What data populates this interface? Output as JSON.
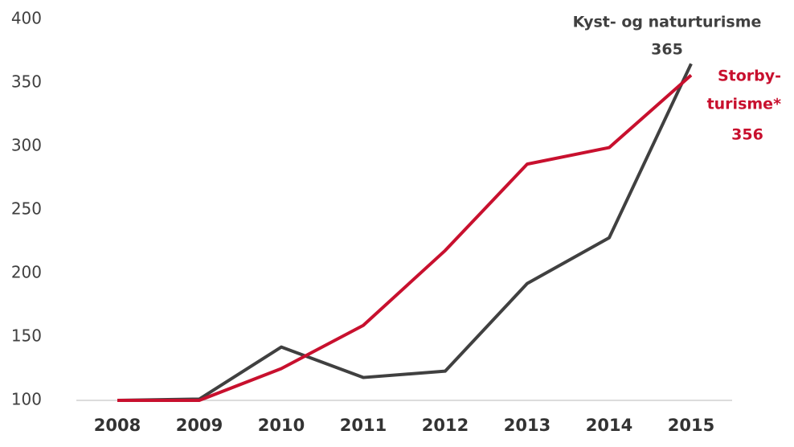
{
  "chart_data": {
    "type": "line",
    "categories": [
      "2008",
      "2009",
      "2010",
      "2011",
      "2012",
      "2013",
      "2014",
      "2015"
    ],
    "series": [
      {
        "name_lines": [
          "Kyst- og naturturisme"
        ],
        "color": "#404040",
        "values": [
          100,
          101,
          142,
          118,
          123,
          192,
          228,
          365
        ]
      },
      {
        "name_lines": [
          "Storby-",
          "turisme*"
        ],
        "color": "#c8102e",
        "values": [
          100,
          100,
          125,
          159,
          218,
          286,
          299,
          356
        ]
      }
    ],
    "ylim": [
      100,
      400
    ],
    "yticks": [
      100,
      150,
      200,
      250,
      300,
      350,
      400
    ],
    "grid": false
  }
}
